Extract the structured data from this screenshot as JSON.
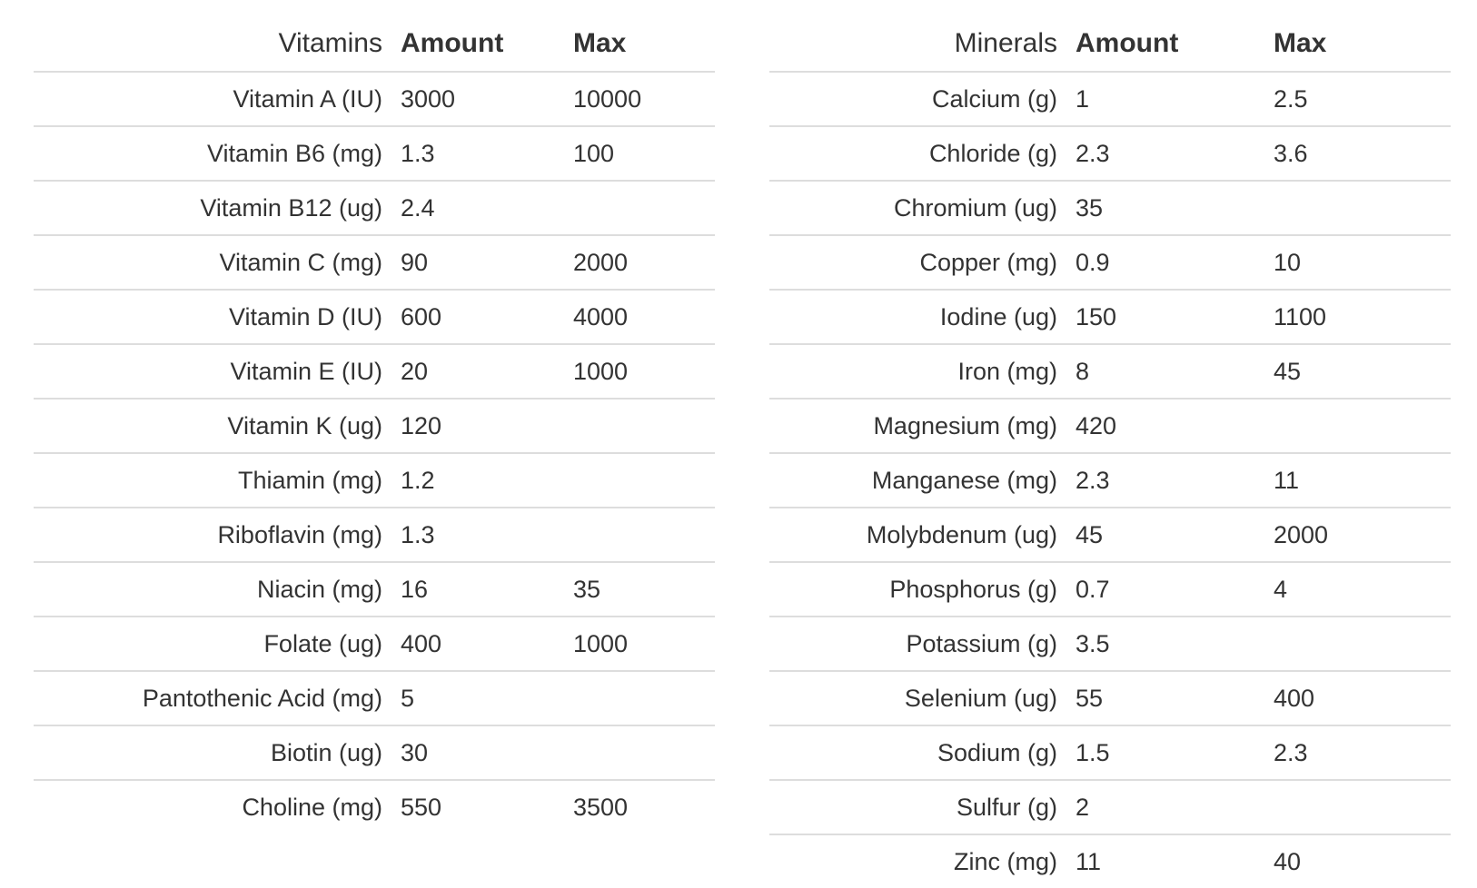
{
  "vitamins": {
    "header": {
      "name": "Vitamins",
      "amount": "Amount",
      "max": "Max"
    },
    "rows": [
      {
        "name": "Vitamin A (IU)",
        "amount": "3000",
        "max": "10000"
      },
      {
        "name": "Vitamin B6 (mg)",
        "amount": "1.3",
        "max": "100"
      },
      {
        "name": "Vitamin B12 (ug)",
        "amount": "2.4",
        "max": ""
      },
      {
        "name": "Vitamin C (mg)",
        "amount": "90",
        "max": "2000"
      },
      {
        "name": "Vitamin D (IU)",
        "amount": "600",
        "max": "4000"
      },
      {
        "name": "Vitamin E (IU)",
        "amount": "20",
        "max": "1000"
      },
      {
        "name": "Vitamin K (ug)",
        "amount": "120",
        "max": ""
      },
      {
        "name": "Thiamin (mg)",
        "amount": "1.2",
        "max": ""
      },
      {
        "name": "Riboflavin (mg)",
        "amount": "1.3",
        "max": ""
      },
      {
        "name": "Niacin (mg)",
        "amount": "16",
        "max": "35"
      },
      {
        "name": "Folate (ug)",
        "amount": "400",
        "max": "1000"
      },
      {
        "name": "Pantothenic Acid (mg)",
        "amount": "5",
        "max": ""
      },
      {
        "name": "Biotin (ug)",
        "amount": "30",
        "max": ""
      },
      {
        "name": "Choline (mg)",
        "amount": "550",
        "max": "3500"
      }
    ]
  },
  "minerals": {
    "header": {
      "name": "Minerals",
      "amount": "Amount",
      "max": "Max"
    },
    "rows": [
      {
        "name": "Calcium (g)",
        "amount": "1",
        "max": "2.5"
      },
      {
        "name": "Chloride (g)",
        "amount": "2.3",
        "max": "3.6"
      },
      {
        "name": "Chromium (ug)",
        "amount": "35",
        "max": ""
      },
      {
        "name": "Copper (mg)",
        "amount": "0.9",
        "max": "10"
      },
      {
        "name": "Iodine (ug)",
        "amount": "150",
        "max": "1100"
      },
      {
        "name": "Iron (mg)",
        "amount": "8",
        "max": "45"
      },
      {
        "name": "Magnesium (mg)",
        "amount": "420",
        "max": ""
      },
      {
        "name": "Manganese (mg)",
        "amount": "2.3",
        "max": "11"
      },
      {
        "name": "Molybdenum (ug)",
        "amount": "45",
        "max": "2000"
      },
      {
        "name": "Phosphorus (g)",
        "amount": "0.7",
        "max": "4"
      },
      {
        "name": "Potassium (g)",
        "amount": "3.5",
        "max": ""
      },
      {
        "name": "Selenium (ug)",
        "amount": "55",
        "max": "400"
      },
      {
        "name": "Sodium (g)",
        "amount": "1.5",
        "max": "2.3"
      },
      {
        "name": "Sulfur (g)",
        "amount": "2",
        "max": ""
      },
      {
        "name": "Zinc (mg)",
        "amount": "11",
        "max": "40"
      }
    ]
  },
  "colors": {
    "text": "#333333",
    "rule": "#dddddd",
    "background": "#ffffff"
  }
}
